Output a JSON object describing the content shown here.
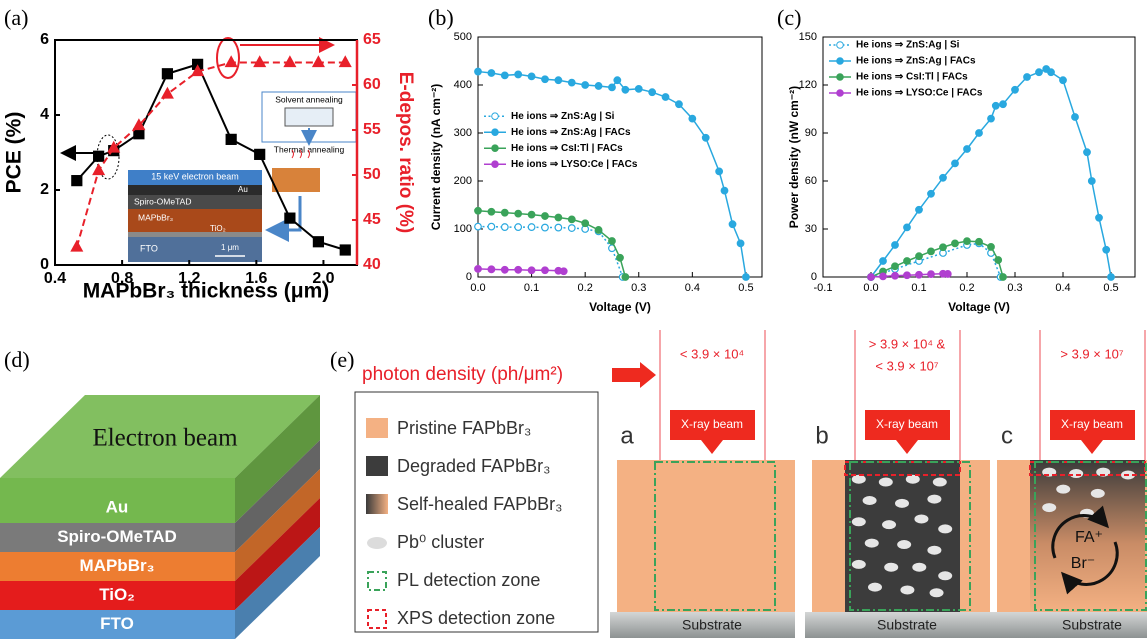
{
  "panel_labels": [
    "(a)",
    "(b)",
    "(c)",
    "(d)",
    "(e)"
  ],
  "chart_data": [
    {
      "type": "line",
      "x_label": "MAPbBr₃ thickness (μm)",
      "y_label": "PCE (%)",
      "y2_label": "E-depos. ratio (%)",
      "y2_color": "#e8202a",
      "xlim": [
        0.4,
        2.2
      ],
      "xticks": [
        0.4,
        0.8,
        1.2,
        1.6,
        {
          "value": 2,
          "label": "2.0"
        }
      ],
      "ylim": [
        0,
        6
      ],
      "yticks": [
        0,
        2,
        4,
        6
      ],
      "y2lim": [
        40,
        65
      ],
      "y2ticks": [
        40,
        45,
        50,
        55,
        60,
        65
      ],
      "x": [
        0.53,
        0.66,
        0.75,
        0.9,
        1.07,
        1.25,
        1.45,
        1.62,
        1.8,
        1.97,
        2.13
      ],
      "series": [
        {
          "color": "#000000",
          "marker": "square",
          "line_style": "solid",
          "values": [
            2.25,
            2.9,
            3.05,
            3.5,
            5.1,
            5.35,
            3.35,
            2.95,
            1.25,
            0.62,
            0.4
          ]
        },
        {
          "color": "#e8202a",
          "marker": "triangle",
          "line_style": "dashed",
          "axis": "y2",
          "values": [
            42,
            50.5,
            53,
            55.5,
            59,
            61.5,
            62.5,
            62.5,
            62.5,
            62.5,
            62.5
          ]
        }
      ],
      "inset": {
        "beam": "15 keV electron beam",
        "layers": [
          "Au",
          "Spiro-OMeTAD",
          "MAPbBr₃",
          "TiO₂",
          "FTO"
        ],
        "scale": "1 μm",
        "solvent": "Solvent annealing",
        "thermal": "Thermal annealing"
      }
    },
    {
      "type": "line",
      "x_label": "Voltage (V)",
      "y_label": "Current density (nA cm⁻²)",
      "legend": "center left",
      "xlim": [
        0,
        0.53
      ],
      "xticks": [
        {
          "value": 0,
          "label": "0.0"
        },
        0.1,
        0.2,
        0.3,
        0.4,
        0.5
      ],
      "ylim": [
        0,
        500
      ],
      "yticks": [
        0,
        100,
        200,
        300,
        400,
        500
      ],
      "series": [
        {
          "name": "He ions ⇒ ZnS:Ag | Si",
          "color": "#29a8df",
          "marker": "circle",
          "marker_fill": "open",
          "line_style": "dotted",
          "x": [
            0,
            0.025,
            0.05,
            0.075,
            0.1,
            0.125,
            0.15,
            0.175,
            0.2,
            0.225,
            0.25,
            0.27
          ],
          "values": [
            105,
            105,
            104,
            104,
            104,
            103,
            103,
            102,
            100,
            95,
            60,
            0
          ]
        },
        {
          "name": "He ions ⇒ ZnS:Ag | FACs",
          "color": "#29a8df",
          "marker": "circle",
          "line_style": "solid",
          "x": [
            0,
            0.025,
            0.05,
            0.075,
            0.1,
            0.125,
            0.15,
            0.175,
            0.2,
            0.225,
            0.25,
            0.26,
            0.275,
            0.3,
            0.325,
            0.35,
            0.375,
            0.4,
            0.425,
            0.45,
            0.46,
            0.475,
            0.49,
            0.5
          ],
          "values": [
            428,
            425,
            420,
            422,
            418,
            412,
            410,
            405,
            400,
            398,
            395,
            410,
            390,
            392,
            385,
            375,
            360,
            330,
            290,
            220,
            180,
            110,
            70,
            0
          ]
        },
        {
          "name": "He ions ⇒ CsI:Tl | FACs",
          "color": "#3aa35a",
          "marker": "circle",
          "line_style": "solid",
          "x": [
            0,
            0.025,
            0.05,
            0.075,
            0.1,
            0.125,
            0.15,
            0.175,
            0.2,
            0.225,
            0.25,
            0.265,
            0.275
          ],
          "values": [
            138,
            136,
            134,
            132,
            130,
            127,
            124,
            120,
            112,
            98,
            75,
            40,
            0
          ]
        },
        {
          "name": "He ions ⇒ LYSO:Ce | FACs",
          "color": "#b03fd0",
          "marker": "circle",
          "line_style": "solid",
          "x": [
            0,
            0.025,
            0.05,
            0.075,
            0.1,
            0.125,
            0.15,
            0.16
          ],
          "values": [
            17,
            16,
            15,
            15,
            14,
            14,
            13,
            12
          ]
        }
      ]
    },
    {
      "type": "line",
      "x_label": "Voltage (V)",
      "y_label": "Power density (nW cm⁻²)",
      "legend": "upper left",
      "xlim": [
        -0.1,
        0.55
      ],
      "xticks": [
        -0.1,
        {
          "value": 0,
          "label": "0.0"
        },
        0.1,
        0.2,
        0.3,
        0.4,
        0.5
      ],
      "ylim": [
        0,
        150
      ],
      "yticks": [
        0,
        30,
        60,
        90,
        120,
        150
      ],
      "series": [
        {
          "name": "He ions ⇒ ZnS:Ag | Si",
          "color": "#29a8df",
          "marker": "circle",
          "marker_fill": "open",
          "line_style": "dotted",
          "x": [
            0,
            0.05,
            0.1,
            0.15,
            0.2,
            0.225,
            0.25,
            0.27
          ],
          "values": [
            0,
            5,
            10,
            15,
            20,
            21,
            15,
            0
          ]
        },
        {
          "name": "He ions ⇒ ZnS:Ag | FACs",
          "color": "#29a8df",
          "marker": "circle",
          "line_style": "solid",
          "x": [
            0,
            0.025,
            0.05,
            0.075,
            0.1,
            0.125,
            0.15,
            0.175,
            0.2,
            0.225,
            0.25,
            0.26,
            0.275,
            0.3,
            0.325,
            0.35,
            0.365,
            0.375,
            0.4,
            0.425,
            0.45,
            0.46,
            0.475,
            0.49,
            0.5
          ],
          "values": [
            0,
            10,
            20,
            31,
            42,
            52,
            62,
            71,
            80,
            90,
            99,
            107,
            108,
            117,
            125,
            128,
            130,
            128,
            123,
            100,
            78,
            60,
            37,
            17,
            0
          ]
        },
        {
          "name": "He ions ⇒ CsI:Tl | FACs",
          "color": "#3aa35a",
          "marker": "circle",
          "line_style": "solid",
          "x": [
            0,
            0.025,
            0.05,
            0.075,
            0.1,
            0.125,
            0.15,
            0.175,
            0.2,
            0.225,
            0.25,
            0.265,
            0.275
          ],
          "values": [
            0,
            3.4,
            6.7,
            10,
            13,
            16,
            18.6,
            21,
            22.4,
            22,
            18.8,
            10.6,
            0
          ]
        },
        {
          "name": "He ions ⇒ LYSO:Ce | FACs",
          "color": "#b03fd0",
          "marker": "circle",
          "line_style": "solid",
          "x": [
            0,
            0.025,
            0.05,
            0.075,
            0.1,
            0.125,
            0.15,
            0.16
          ],
          "values": [
            0,
            0.4,
            0.8,
            1.1,
            1.4,
            1.8,
            2,
            1.9
          ]
        }
      ]
    }
  ],
  "stack": {
    "top": "Electron beam",
    "top_color": "#74b84e",
    "layers": [
      {
        "label": "Au",
        "color": "#74b84e"
      },
      {
        "label": "Spiro-OMeTAD",
        "color": "#7a7a7a"
      },
      {
        "label": "MAPbBr₃",
        "color": "#ed7d31"
      },
      {
        "label": "TiO₂",
        "color": "#e41c1c"
      },
      {
        "label": "FTO",
        "color": "#5b9bd5"
      }
    ]
  },
  "schematic": {
    "photon_label": "photon density (ph/μm²)",
    "legend": [
      "Pristine FAPbBr₃",
      "Degraded FAPbBr₃",
      "Self-healed FAPbBr₃",
      "Pb⁰ cluster",
      "PL detection zone",
      "XPS detection zone"
    ],
    "columns": [
      {
        "letter": "a",
        "dose": [
          "< 3.9 × 10⁴"
        ],
        "beam": "X-ray beam",
        "substrate": "Substrate"
      },
      {
        "letter": "b",
        "dose": [
          "> 3.9 × 10⁴ &",
          "< 3.9 × 10⁷"
        ],
        "beam": "X-ray beam",
        "substrate": "Substrate"
      },
      {
        "letter": "c",
        "dose": [
          "> 3.9 × 10⁷"
        ],
        "beam": "X-ray beam",
        "substrate": "Substrate"
      }
    ],
    "ions": [
      "FA⁺",
      "Br⁻"
    ]
  }
}
